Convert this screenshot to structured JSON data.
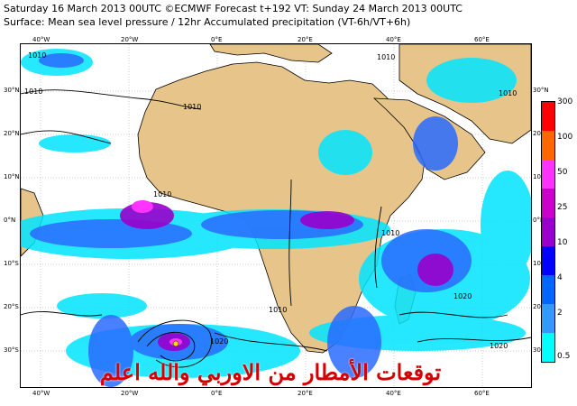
{
  "header": {
    "line1": "Saturday 16 March 2013 00UTC ©ECMWF Forecast t+192 VT: Sunday 24 March 2013 00UTC",
    "line2": "Surface: Mean sea level pressure / 12hr Accumulated precipitation (VT-6h/VT+6h)"
  },
  "map": {
    "longitude_labels": [
      "40°W",
      "20°W",
      "0°E",
      "20°E",
      "40°E",
      "60°E"
    ],
    "longitude_labels_bottom": [
      "40°W",
      "20°W",
      "0°E",
      "20°E",
      "40°E",
      "60°E"
    ],
    "latitude_labels_left": [
      "30°N",
      "20°N",
      "10°N",
      "0°N",
      "10°S",
      "20°S",
      "30°S"
    ],
    "latitude_labels_right": [
      "30°N",
      "20°N",
      "10°N",
      "0°N",
      "10°S",
      "20°S",
      "30°S"
    ],
    "isobar_labels": [
      "1010",
      "1010",
      "1010",
      "1010",
      "1010",
      "1010",
      "1010",
      "1020",
      "1020",
      "1020",
      "1010"
    ],
    "land_color": "#e7c48a",
    "ocean_color": "#ffffff"
  },
  "legend": {
    "labels": [
      "300",
      "100",
      "50",
      "25",
      "10",
      "4",
      "2",
      "0.5"
    ],
    "colors": [
      "#ff0000",
      "#ff6600",
      "#ff33ff",
      "#cc00cc",
      "#9900cc",
      "#0000ff",
      "#0066ff",
      "#3399ff",
      "#00ffff"
    ]
  },
  "overlay": {
    "text": "توقعات الأمطار من الاوربي والله اعلم"
  }
}
